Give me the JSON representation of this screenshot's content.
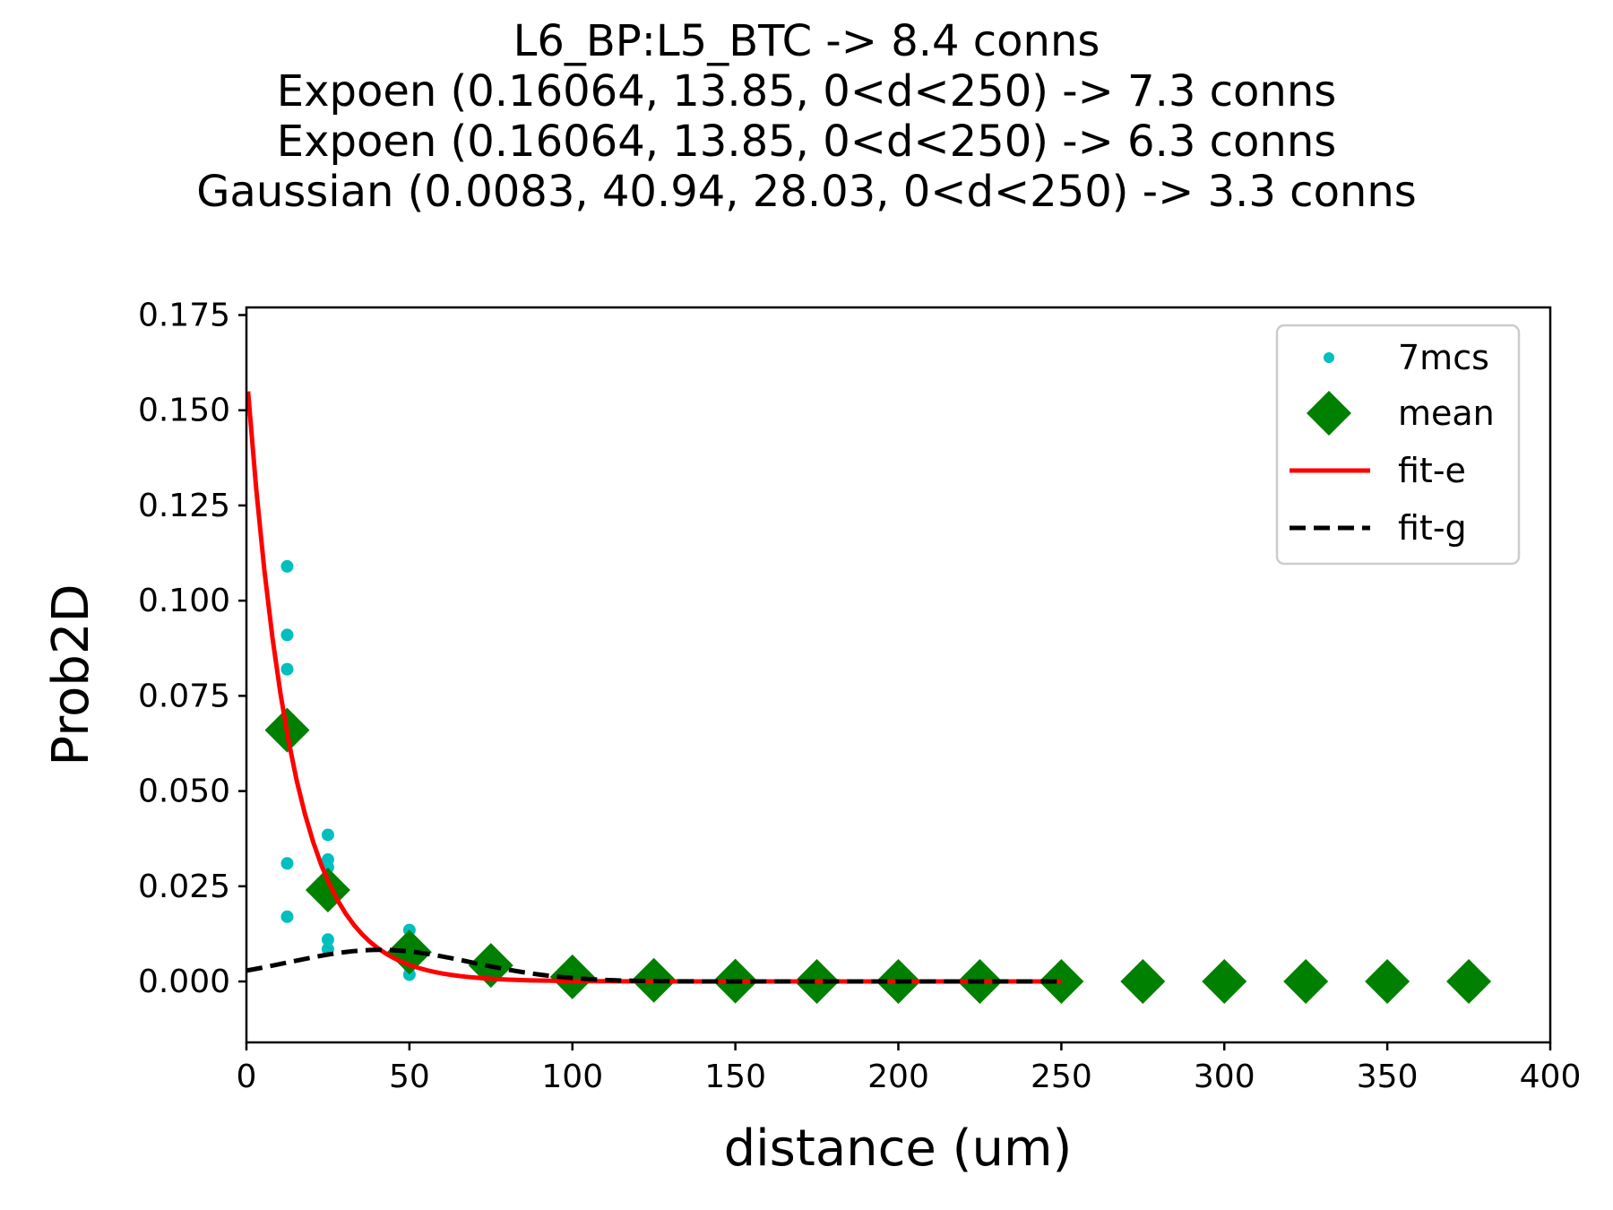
{
  "chart_data": {
    "type": "scatter",
    "title_lines": [
      "L6_BP:L5_BTC -> 8.4 conns",
      "Expoen (0.16064, 13.85, 0<d<250) -> 7.3 conns",
      "Expoen (0.16064, 13.85, 0<d<250) -> 6.3 conns",
      "Gaussian (0.0083, 40.94, 28.03, 0<d<250) -> 3.3 conns"
    ],
    "xlabel": "distance (um)",
    "ylabel": "Prob2D",
    "xlim": [
      0,
      400
    ],
    "ylim": [
      -0.016,
      0.177
    ],
    "xticks": [
      0,
      50,
      100,
      150,
      200,
      250,
      300,
      350,
      400
    ],
    "yticks": [
      0.0,
      0.025,
      0.05,
      0.075,
      0.1,
      0.125,
      0.15,
      0.175
    ],
    "ytick_labels": [
      "0.000",
      "0.025",
      "0.050",
      "0.075",
      "0.100",
      "0.125",
      "0.150",
      "0.175"
    ],
    "grid": false,
    "legend_position": "upper right",
    "series": [
      {
        "name": "7mcs",
        "kind": "points",
        "color": "#00bfbf",
        "marker": "dot",
        "points": [
          [
            12.5,
            0.109
          ],
          [
            12.5,
            0.091
          ],
          [
            12.5,
            0.082
          ],
          [
            12.5,
            0.031
          ],
          [
            12.5,
            0.017
          ],
          [
            25,
            0.0385
          ],
          [
            25,
            0.032
          ],
          [
            25,
            0.03
          ],
          [
            25,
            0.011
          ],
          [
            25,
            0.0085
          ],
          [
            50,
            0.0135
          ],
          [
            50,
            0.009
          ],
          [
            50,
            0.004
          ],
          [
            50,
            0.0018
          ]
        ]
      },
      {
        "name": "mean",
        "kind": "points",
        "color": "#008000",
        "marker": "diamond",
        "points": [
          [
            12.5,
            0.066
          ],
          [
            25,
            0.024
          ],
          [
            50,
            0.0077
          ],
          [
            75,
            0.0042
          ],
          [
            100,
            0.0012
          ],
          [
            125,
            0.0003
          ],
          [
            150,
            0.0001
          ],
          [
            175,
            0.0
          ],
          [
            200,
            0.0
          ],
          [
            225,
            0.0
          ],
          [
            250,
            0.0
          ],
          [
            275,
            0.0
          ],
          [
            300,
            0.0
          ],
          [
            325,
            0.0
          ],
          [
            350,
            0.0
          ],
          [
            375,
            0.0
          ]
        ]
      },
      {
        "name": "fit-e",
        "kind": "line",
        "color": "#ff0000",
        "dash": "solid",
        "model": "exponential",
        "params": [
          0.16064,
          13.85
        ],
        "domain": [
          0.5,
          250
        ]
      },
      {
        "name": "fit-g",
        "kind": "line",
        "color": "#000000",
        "dash": "dashed",
        "model": "gaussian",
        "params": [
          0.0083,
          40.94,
          28.03
        ],
        "domain": [
          0,
          250
        ]
      }
    ]
  }
}
